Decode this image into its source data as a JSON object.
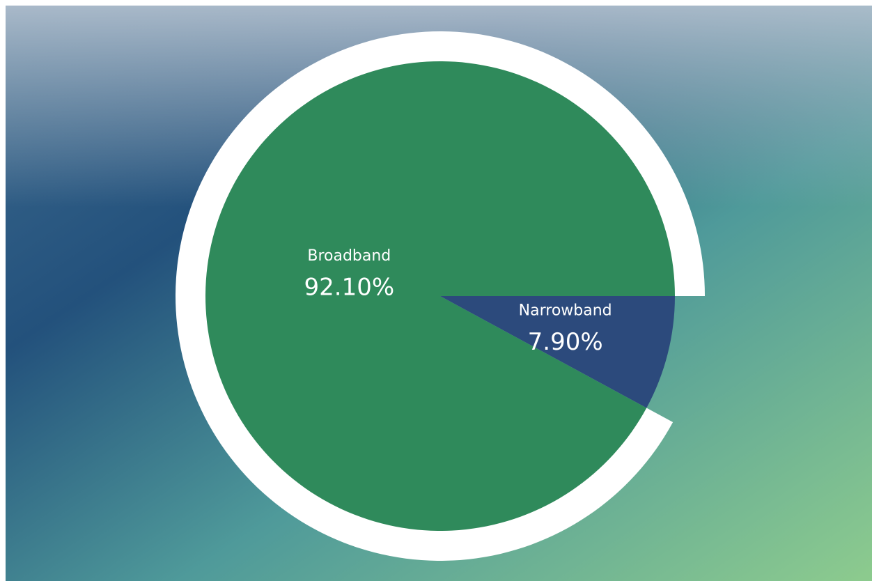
{
  "chart_data": {
    "type": "pie",
    "categories": [
      "Broadband",
      "Narrowband"
    ],
    "values": [
      92.1,
      7.9
    ],
    "value_labels": [
      "92.10%",
      "7.90%"
    ],
    "colors": [
      "#2f8a5b",
      "#2c4a7c"
    ]
  }
}
